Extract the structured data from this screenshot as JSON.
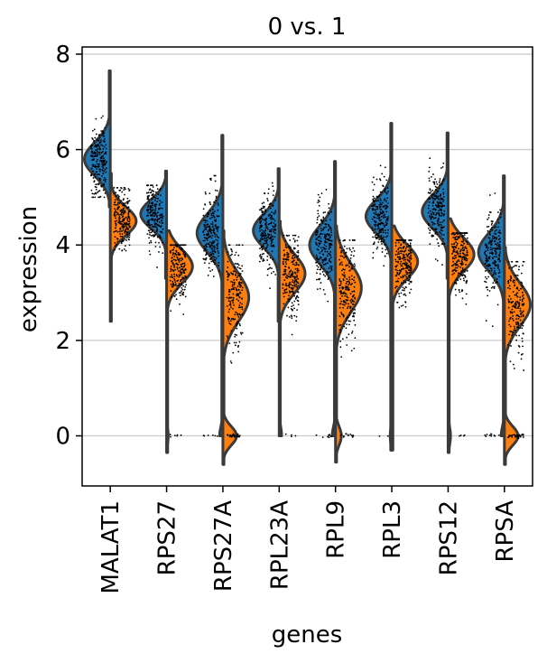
{
  "chart_data": {
    "type": "violin",
    "title": "0 vs. 1",
    "xlabel": "genes",
    "ylabel": "expression",
    "ylim": [
      -1.05,
      8.15
    ],
    "yticks": [
      0,
      2,
      4,
      6,
      8
    ],
    "grid": "horizontal",
    "colors": {
      "group_0": "#1f77b4",
      "group_1": "#ff7f0e",
      "outline": "#3a3a3a",
      "grid": "#cccccc",
      "points": "#000000"
    },
    "categories": [
      "MALAT1",
      "RPS27",
      "RPS27A",
      "RPL23A",
      "RPL9",
      "RPL3",
      "RPS12",
      "RPSA"
    ],
    "series": [
      {
        "group": "0",
        "side": "left",
        "color": "#1f77b4",
        "genes": [
          {
            "gene": "MALAT1",
            "center": 5.8,
            "sd": 0.35,
            "min": 4.8,
            "max": 7.65,
            "zero_fraction": 0.0
          },
          {
            "gene": "RPS27",
            "center": 4.65,
            "sd": 0.3,
            "min": 3.3,
            "max": 5.55,
            "zero_fraction": 0.0
          },
          {
            "gene": "RPS27A",
            "center": 4.25,
            "sd": 0.4,
            "min": 0.0,
            "max": 6.3,
            "zero_fraction": 0.04
          },
          {
            "gene": "RPL23A",
            "center": 4.3,
            "sd": 0.35,
            "min": 2.4,
            "max": 5.6,
            "zero_fraction": 0.0
          },
          {
            "gene": "RPL9",
            "center": 4.0,
            "sd": 0.4,
            "min": 0.0,
            "max": 5.75,
            "zero_fraction": 0.04
          },
          {
            "gene": "RPL3",
            "center": 4.6,
            "sd": 0.35,
            "min": -0.3,
            "max": 6.55,
            "zero_fraction": 0.02
          },
          {
            "gene": "RPS12",
            "center": 4.7,
            "sd": 0.35,
            "min": 3.3,
            "max": 6.35,
            "zero_fraction": 0.0
          },
          {
            "gene": "RPSA",
            "center": 3.85,
            "sd": 0.4,
            "min": 0.0,
            "max": 5.45,
            "zero_fraction": 0.04
          }
        ]
      },
      {
        "group": "1",
        "side": "right",
        "color": "#ff7f0e",
        "genes": [
          {
            "gene": "MALAT1",
            "center": 4.5,
            "sd": 0.3,
            "min": 2.4,
            "max": 5.5,
            "zero_fraction": 0.0
          },
          {
            "gene": "RPS27",
            "center": 3.55,
            "sd": 0.35,
            "min": -0.35,
            "max": 4.3,
            "zero_fraction": 0.02
          },
          {
            "gene": "RPS27A",
            "center": 2.9,
            "sd": 0.5,
            "min": -0.6,
            "max": 4.3,
            "zero_fraction": 0.15
          },
          {
            "gene": "RPL23A",
            "center": 3.4,
            "sd": 0.4,
            "min": 0.0,
            "max": 4.5,
            "zero_fraction": 0.03
          },
          {
            "gene": "RPL9",
            "center": 3.1,
            "sd": 0.5,
            "min": -0.55,
            "max": 4.4,
            "zero_fraction": 0.07
          },
          {
            "gene": "RPL3",
            "center": 3.65,
            "sd": 0.35,
            "min": -0.3,
            "max": 4.4,
            "zero_fraction": 0.0
          },
          {
            "gene": "RPS12",
            "center": 3.8,
            "sd": 0.35,
            "min": -0.35,
            "max": 4.55,
            "zero_fraction": 0.03
          },
          {
            "gene": "RPSA",
            "center": 2.75,
            "sd": 0.45,
            "min": -0.6,
            "max": 3.95,
            "zero_fraction": 0.15
          }
        ]
      }
    ]
  }
}
